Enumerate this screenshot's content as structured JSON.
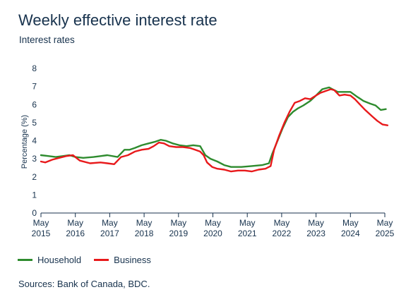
{
  "title": "Weekly effective interest rate",
  "subtitle": "Interest rates",
  "source": "Sources: Bank of Canada, BDC.",
  "colors": {
    "household": "#2e8b2e",
    "business": "#e8191b",
    "axis": "#17324d"
  },
  "chart_data": {
    "type": "line",
    "title": "Weekly effective interest rate",
    "subtitle": "Interest rates",
    "ylabel": "Percentage (%)",
    "xlabel": "",
    "ylim": [
      0,
      8
    ],
    "yticks": [
      0,
      1,
      2,
      3,
      4,
      5,
      6,
      7,
      8
    ],
    "xlim": [
      2015.37,
      2025.45
    ],
    "xticks": [
      {
        "x": 2015.37,
        "label1": "May",
        "label2": "2015"
      },
      {
        "x": 2016.37,
        "label1": "May",
        "label2": "2016"
      },
      {
        "x": 2017.37,
        "label1": "May",
        "label2": "2017"
      },
      {
        "x": 2018.37,
        "label1": "May",
        "label2": "2018"
      },
      {
        "x": 2019.37,
        "label1": "May",
        "label2": "2019"
      },
      {
        "x": 2020.37,
        "label1": "May",
        "label2": "2020"
      },
      {
        "x": 2021.37,
        "label1": "May",
        "label2": "2021"
      },
      {
        "x": 2022.37,
        "label1": "May",
        "label2": "2022"
      },
      {
        "x": 2023.37,
        "label1": "May",
        "label2": "2023"
      },
      {
        "x": 2024.37,
        "label1": "May",
        "label2": "2024"
      },
      {
        "x": 2025.37,
        "label1": "May",
        "label2": "2025"
      }
    ],
    "grid": false,
    "legend": "bottom-left",
    "series": [
      {
        "name": "Household",
        "color": "#2e8b2e",
        "x": [
          2015.37,
          2015.6,
          2015.8,
          2016.0,
          2016.2,
          2016.37,
          2016.6,
          2016.9,
          2017.1,
          2017.3,
          2017.6,
          2017.8,
          2017.95,
          2018.1,
          2018.3,
          2018.5,
          2018.7,
          2018.85,
          2019.0,
          2019.2,
          2019.4,
          2019.6,
          2019.8,
          2020.0,
          2020.15,
          2020.3,
          2020.5,
          2020.7,
          2020.9,
          2021.0,
          2021.2,
          2021.5,
          2021.8,
          2022.0,
          2022.1,
          2022.25,
          2022.4,
          2022.55,
          2022.7,
          2022.85,
          2023.0,
          2023.2,
          2023.37,
          2023.55,
          2023.75,
          2023.85,
          2024.0,
          2024.2,
          2024.37,
          2024.55,
          2024.75,
          2024.95,
          2025.1,
          2025.25,
          2025.4
        ],
        "values": [
          3.2,
          3.15,
          3.1,
          3.15,
          3.2,
          3.1,
          3.05,
          3.1,
          3.15,
          3.2,
          3.1,
          3.5,
          3.5,
          3.6,
          3.75,
          3.85,
          3.95,
          4.05,
          4.0,
          3.85,
          3.75,
          3.7,
          3.75,
          3.7,
          3.2,
          3.0,
          2.85,
          2.65,
          2.55,
          2.55,
          2.55,
          2.6,
          2.65,
          2.75,
          3.3,
          4.0,
          4.7,
          5.3,
          5.6,
          5.8,
          5.95,
          6.2,
          6.5,
          6.85,
          6.95,
          6.85,
          6.7,
          6.7,
          6.7,
          6.45,
          6.2,
          6.05,
          5.95,
          5.7,
          5.75
        ]
      },
      {
        "name": "Business",
        "color": "#e8191b",
        "x": [
          2015.37,
          2015.5,
          2015.7,
          2015.9,
          2016.1,
          2016.3,
          2016.5,
          2016.8,
          2017.1,
          2017.3,
          2017.5,
          2017.7,
          2017.9,
          2018.1,
          2018.3,
          2018.5,
          2018.65,
          2018.8,
          2018.95,
          2019.1,
          2019.3,
          2019.5,
          2019.7,
          2019.85,
          2020.0,
          2020.1,
          2020.2,
          2020.35,
          2020.5,
          2020.7,
          2020.9,
          2021.1,
          2021.3,
          2021.5,
          2021.7,
          2021.9,
          2022.05,
          2022.15,
          2022.3,
          2022.45,
          2022.6,
          2022.75,
          2022.9,
          2023.05,
          2023.2,
          2023.37,
          2023.5,
          2023.65,
          2023.8,
          2023.9,
          2024.05,
          2024.2,
          2024.37,
          2024.5,
          2024.65,
          2024.8,
          2025.0,
          2025.15,
          2025.3,
          2025.45
        ],
        "values": [
          2.85,
          2.8,
          2.95,
          3.05,
          3.15,
          3.2,
          2.9,
          2.75,
          2.8,
          2.75,
          2.7,
          3.1,
          3.2,
          3.4,
          3.5,
          3.55,
          3.7,
          3.9,
          3.85,
          3.7,
          3.65,
          3.65,
          3.6,
          3.5,
          3.4,
          3.2,
          2.8,
          2.55,
          2.45,
          2.4,
          2.3,
          2.35,
          2.35,
          2.3,
          2.4,
          2.45,
          2.6,
          3.5,
          4.3,
          5.0,
          5.6,
          6.1,
          6.2,
          6.35,
          6.3,
          6.5,
          6.65,
          6.75,
          6.85,
          6.8,
          6.5,
          6.55,
          6.5,
          6.3,
          6.0,
          5.7,
          5.35,
          5.1,
          4.9,
          4.85
        ]
      }
    ]
  },
  "legend": {
    "household": "Household",
    "business": "Business"
  }
}
